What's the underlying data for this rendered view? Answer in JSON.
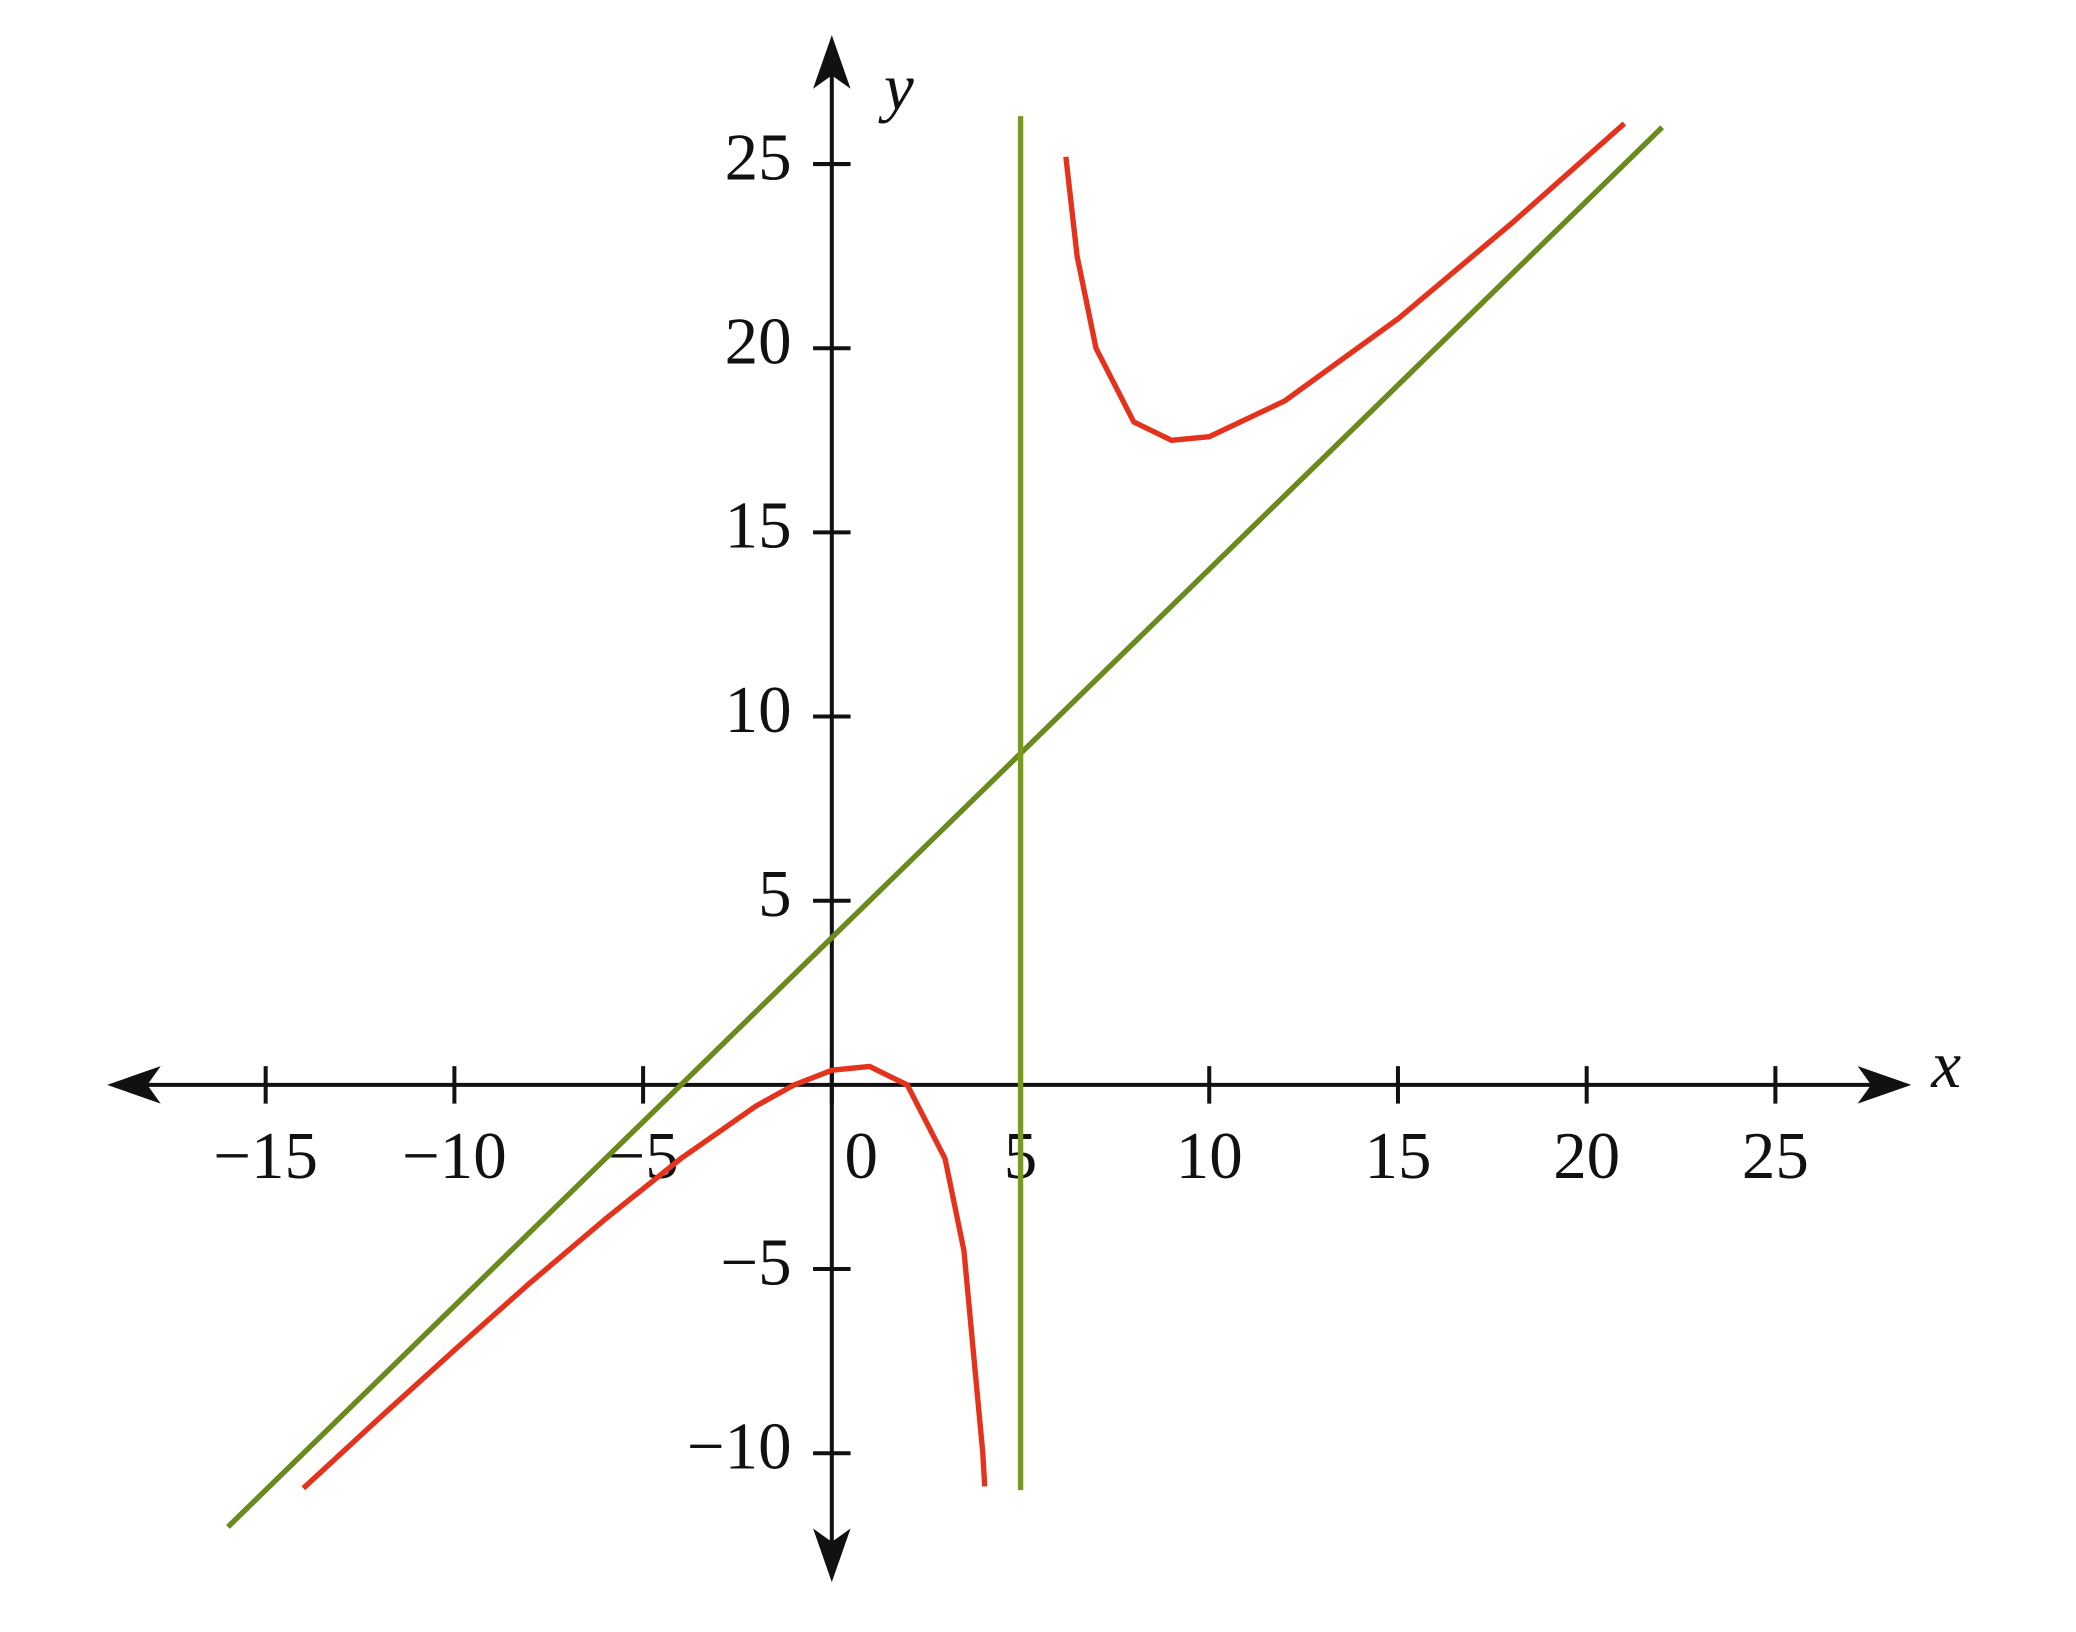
{
  "chart_data": {
    "type": "line",
    "x_label": "x",
    "y_label": "y",
    "xlim": [
      -19.2,
      28.6
    ],
    "ylim": [
      -13.5,
      28.5
    ],
    "xticks": [
      {
        "value": -15,
        "label": "−15"
      },
      {
        "value": -10,
        "label": "−10"
      },
      {
        "value": -5,
        "label": "−5"
      },
      0,
      5,
      10,
      15,
      20,
      25
    ],
    "yticks": [
      {
        "value": -10,
        "label": "−10"
      },
      {
        "value": -5,
        "label": "−5"
      },
      5,
      10,
      15,
      20,
      25
    ],
    "series": [
      {
        "color": "#e5321c",
        "x": [
          -14,
          -12,
          -10,
          -8,
          -6,
          -4,
          -2,
          -1,
          0,
          1,
          2,
          3,
          3.5,
          4,
          4.05,
          null,
          6.2,
          6.5,
          7,
          8,
          9,
          10,
          12,
          15,
          18,
          21
        ],
        "values": [
          -10.95,
          -9.06,
          -7.2,
          -5.38,
          -3.64,
          -2,
          -0.57,
          0,
          0.4,
          0.5,
          0,
          -2,
          -4.5,
          -10,
          -10.9,
          null,
          25.2,
          22.5,
          20,
          18,
          17.5,
          17.6,
          18.57,
          20.8,
          23.38,
          26.1
        ]
      },
      {
        "color": "#6b8a1e",
        "x": [
          -16,
          22
        ],
        "values": [
          -12,
          26
        ]
      },
      {
        "color": "#7a9a1a",
        "x": [
          5,
          5
        ],
        "values": [
          -11,
          26.3
        ]
      }
    ]
  }
}
